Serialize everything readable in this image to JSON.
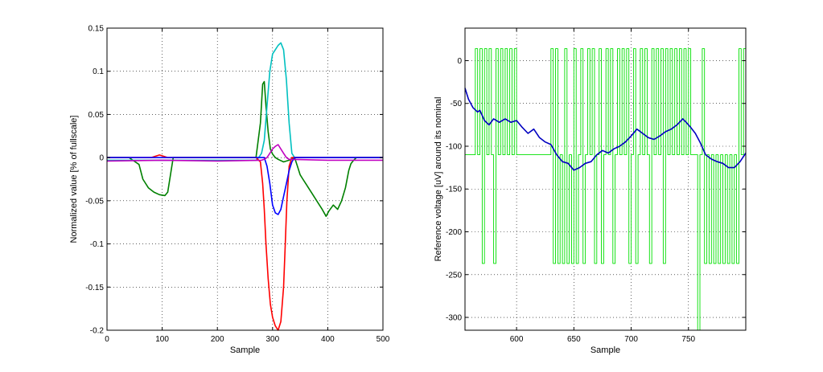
{
  "chart_data": [
    {
      "type": "line",
      "title": "",
      "xlabel": "Sample",
      "ylabel": "Normalized value [% of fullscale]",
      "xlim": [
        0,
        500
      ],
      "ylim": [
        -0.2,
        0.15
      ],
      "grid": true,
      "xticks": [
        0,
        100,
        200,
        300,
        400,
        500
      ],
      "yticks": [
        -0.2,
        -0.15,
        -0.1,
        -0.05,
        0,
        0.05,
        0.1,
        0.15
      ],
      "xtick_labels": [
        "0",
        "100",
        "200",
        "300",
        "400",
        "500"
      ],
      "ytick_labels": [
        "-0.2",
        "-0.15",
        "-0.1",
        "-0.05",
        "0",
        "0.05",
        "0.1",
        "0.15"
      ],
      "series": [
        {
          "color": "#008000",
          "x": [
            0,
            40,
            58,
            65,
            75,
            85,
            95,
            105,
            110,
            115,
            120,
            200,
            260,
            270,
            278,
            282,
            285,
            288,
            292,
            296,
            300,
            305,
            310,
            320,
            330,
            340,
            345,
            350,
            355,
            360,
            370,
            380,
            390,
            397,
            402,
            410,
            418,
            425,
            432,
            438,
            442,
            447,
            452,
            500
          ],
          "y": [
            0.0,
            0.0,
            -0.008,
            -0.025,
            -0.035,
            -0.04,
            -0.043,
            -0.044,
            -0.04,
            -0.02,
            0.0,
            0.0,
            0.0,
            0.0,
            0.04,
            0.085,
            0.088,
            0.06,
            0.03,
            0.01,
            0.004,
            0.0,
            -0.002,
            -0.005,
            -0.003,
            0.0,
            -0.01,
            -0.02,
            -0.025,
            -0.03,
            -0.04,
            -0.05,
            -0.06,
            -0.068,
            -0.062,
            -0.055,
            -0.06,
            -0.05,
            -0.035,
            -0.015,
            -0.007,
            -0.003,
            0.0,
            0.0
          ]
        },
        {
          "color": "#00c0c0",
          "x": [
            0,
            260,
            270,
            275,
            280,
            285,
            290,
            295,
            300,
            305,
            310,
            315,
            320,
            325,
            330,
            335,
            340,
            500
          ],
          "y": [
            -0.003,
            -0.003,
            -0.003,
            0.0,
            0.005,
            0.02,
            0.06,
            0.1,
            0.12,
            0.125,
            0.13,
            0.133,
            0.125,
            0.09,
            0.04,
            0.005,
            0.0,
            0.0
          ]
        },
        {
          "color": "#ff0000",
          "x": [
            0,
            80,
            95,
            110,
            270,
            278,
            282,
            285,
            288,
            292,
            296,
            300,
            305,
            310,
            315,
            320,
            323,
            326,
            330,
            335,
            345,
            500
          ],
          "y": [
            0.0,
            0.0,
            0.003,
            0.0,
            0.0,
            -0.005,
            -0.03,
            -0.06,
            -0.1,
            -0.14,
            -0.17,
            -0.185,
            -0.195,
            -0.2,
            -0.19,
            -0.15,
            -0.1,
            -0.05,
            -0.01,
            0.0,
            0.0,
            0.0
          ]
        },
        {
          "color": "#0000ff",
          "x": [
            0,
            280,
            285,
            290,
            295,
            300,
            305,
            310,
            315,
            320,
            325,
            330,
            335,
            340,
            350,
            500
          ],
          "y": [
            0.0,
            0.0,
            0.0,
            -0.01,
            -0.03,
            -0.055,
            -0.064,
            -0.066,
            -0.06,
            -0.045,
            -0.03,
            -0.015,
            -0.005,
            0.0,
            0.0,
            0.0
          ]
        },
        {
          "color": "#c000c0",
          "x": [
            0,
            100,
            200,
            280,
            285,
            290,
            295,
            300,
            305,
            310,
            315,
            320,
            325,
            330,
            400,
            500
          ],
          "y": [
            -0.004,
            -0.003,
            -0.004,
            -0.003,
            -0.002,
            0.0,
            0.005,
            0.01,
            0.013,
            0.015,
            0.01,
            0.005,
            0.0,
            -0.002,
            -0.003,
            -0.003
          ]
        }
      ]
    },
    {
      "type": "line",
      "title": "",
      "xlabel": "Sample",
      "ylabel": "Reference voltage [uV] around its nominal",
      "xlim": [
        555,
        800
      ],
      "ylim": [
        -315,
        38
      ],
      "grid": true,
      "xticks": [
        600,
        650,
        700,
        750
      ],
      "yticks": [
        -300,
        -250,
        -200,
        -150,
        -100,
        -50,
        0
      ],
      "xtick_labels": [
        "600",
        "650",
        "700",
        "750"
      ],
      "ytick_labels": [
        "-300",
        "-250",
        "-200",
        "-150",
        "-100",
        "-50",
        "0"
      ],
      "series": [
        {
          "color": "#00e000",
          "style": "noisy",
          "x": [
            555,
            562,
            564,
            566,
            568,
            570,
            572,
            574,
            576,
            578,
            580,
            582,
            584,
            586,
            588,
            590,
            592,
            594,
            596,
            598,
            600,
            605,
            610,
            615,
            620,
            625,
            628,
            630,
            632,
            634,
            636,
            638,
            640,
            642,
            644,
            646,
            648,
            650,
            652,
            654,
            656,
            658,
            660,
            662,
            664,
            666,
            668,
            670,
            672,
            674,
            676,
            678,
            680,
            682,
            684,
            686,
            688,
            690,
            692,
            694,
            696,
            698,
            700,
            702,
            704,
            706,
            708,
            710,
            712,
            714,
            716,
            718,
            720,
            722,
            724,
            726,
            728,
            730,
            732,
            734,
            736,
            738,
            740,
            742,
            744,
            746,
            748,
            750,
            752,
            754,
            756,
            758,
            760,
            762,
            764,
            766,
            768,
            770,
            772,
            774,
            776,
            778,
            780,
            782,
            784,
            786,
            788,
            790,
            792,
            794,
            796,
            798,
            800
          ],
          "y": [
            -110,
            -110,
            14,
            -110,
            14,
            -237,
            14,
            -110,
            14,
            -110,
            -237,
            14,
            -110,
            14,
            -110,
            14,
            -110,
            14,
            -110,
            14,
            -110,
            -110,
            -110,
            -110,
            -110,
            -110,
            -110,
            14,
            -237,
            14,
            -237,
            -110,
            -237,
            14,
            -237,
            -110,
            -237,
            14,
            -237,
            -110,
            14,
            -237,
            -110,
            14,
            -110,
            14,
            -237,
            -110,
            14,
            -237,
            -110,
            14,
            -110,
            14,
            -237,
            -110,
            14,
            -110,
            14,
            -110,
            14,
            -237,
            -110,
            14,
            -237,
            -110,
            14,
            -110,
            14,
            -110,
            -237,
            14,
            -110,
            14,
            -110,
            14,
            -237,
            14,
            -110,
            14,
            -110,
            14,
            -110,
            14,
            -110,
            14,
            -110,
            14,
            -110,
            -110,
            -110,
            -315,
            -110,
            14,
            -237,
            -110,
            -237,
            -110,
            -237,
            -110,
            -237,
            -110,
            -237,
            -110,
            -237,
            -110,
            -237,
            -110,
            -237,
            14,
            -110,
            14,
            -80
          ]
        },
        {
          "color": "#0000c0",
          "style": "smooth",
          "x": [
            555,
            558,
            562,
            566,
            568,
            572,
            576,
            580,
            585,
            590,
            595,
            600,
            605,
            610,
            615,
            620,
            625,
            630,
            635,
            640,
            645,
            650,
            655,
            660,
            665,
            670,
            675,
            680,
            685,
            690,
            695,
            700,
            705,
            710,
            715,
            720,
            725,
            730,
            735,
            740,
            745,
            748,
            752,
            756,
            760,
            765,
            770,
            775,
            780,
            785,
            790,
            795,
            800
          ],
          "y": [
            -32,
            -45,
            -55,
            -60,
            -58,
            -70,
            -75,
            -68,
            -72,
            -68,
            -72,
            -70,
            -78,
            -85,
            -80,
            -90,
            -95,
            -98,
            -110,
            -118,
            -120,
            -128,
            -125,
            -120,
            -118,
            -110,
            -105,
            -108,
            -103,
            -100,
            -95,
            -88,
            -80,
            -85,
            -90,
            -92,
            -88,
            -83,
            -80,
            -75,
            -68,
            -72,
            -78,
            -85,
            -95,
            -110,
            -115,
            -118,
            -120,
            -125,
            -125,
            -118,
            -108
          ]
        }
      ]
    }
  ]
}
